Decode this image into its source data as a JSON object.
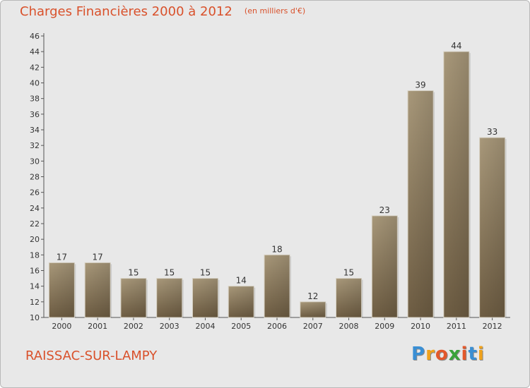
{
  "chart_data": {
    "type": "bar",
    "title": "Charges Financières 2000 à 2012",
    "subtitle": "(en milliers d'€)",
    "categories": [
      "2000",
      "2001",
      "2002",
      "2003",
      "2004",
      "2005",
      "2006",
      "2007",
      "2008",
      "2009",
      "2010",
      "2011",
      "2012"
    ],
    "values": [
      17,
      17,
      15,
      15,
      15,
      14,
      18,
      12,
      15,
      23,
      39,
      44,
      33
    ],
    "ylim": [
      10,
      46
    ],
    "yticks": [
      10,
      12,
      14,
      16,
      18,
      20,
      22,
      24,
      26,
      28,
      30,
      32,
      34,
      36,
      38,
      40,
      42,
      44,
      46
    ],
    "grid": false,
    "bar_color": "#8e7a5d"
  },
  "footer": {
    "town": "RAISSAC-SUR-LAMPY",
    "logo": "Proxiti",
    "text_color": "#d9512b"
  }
}
